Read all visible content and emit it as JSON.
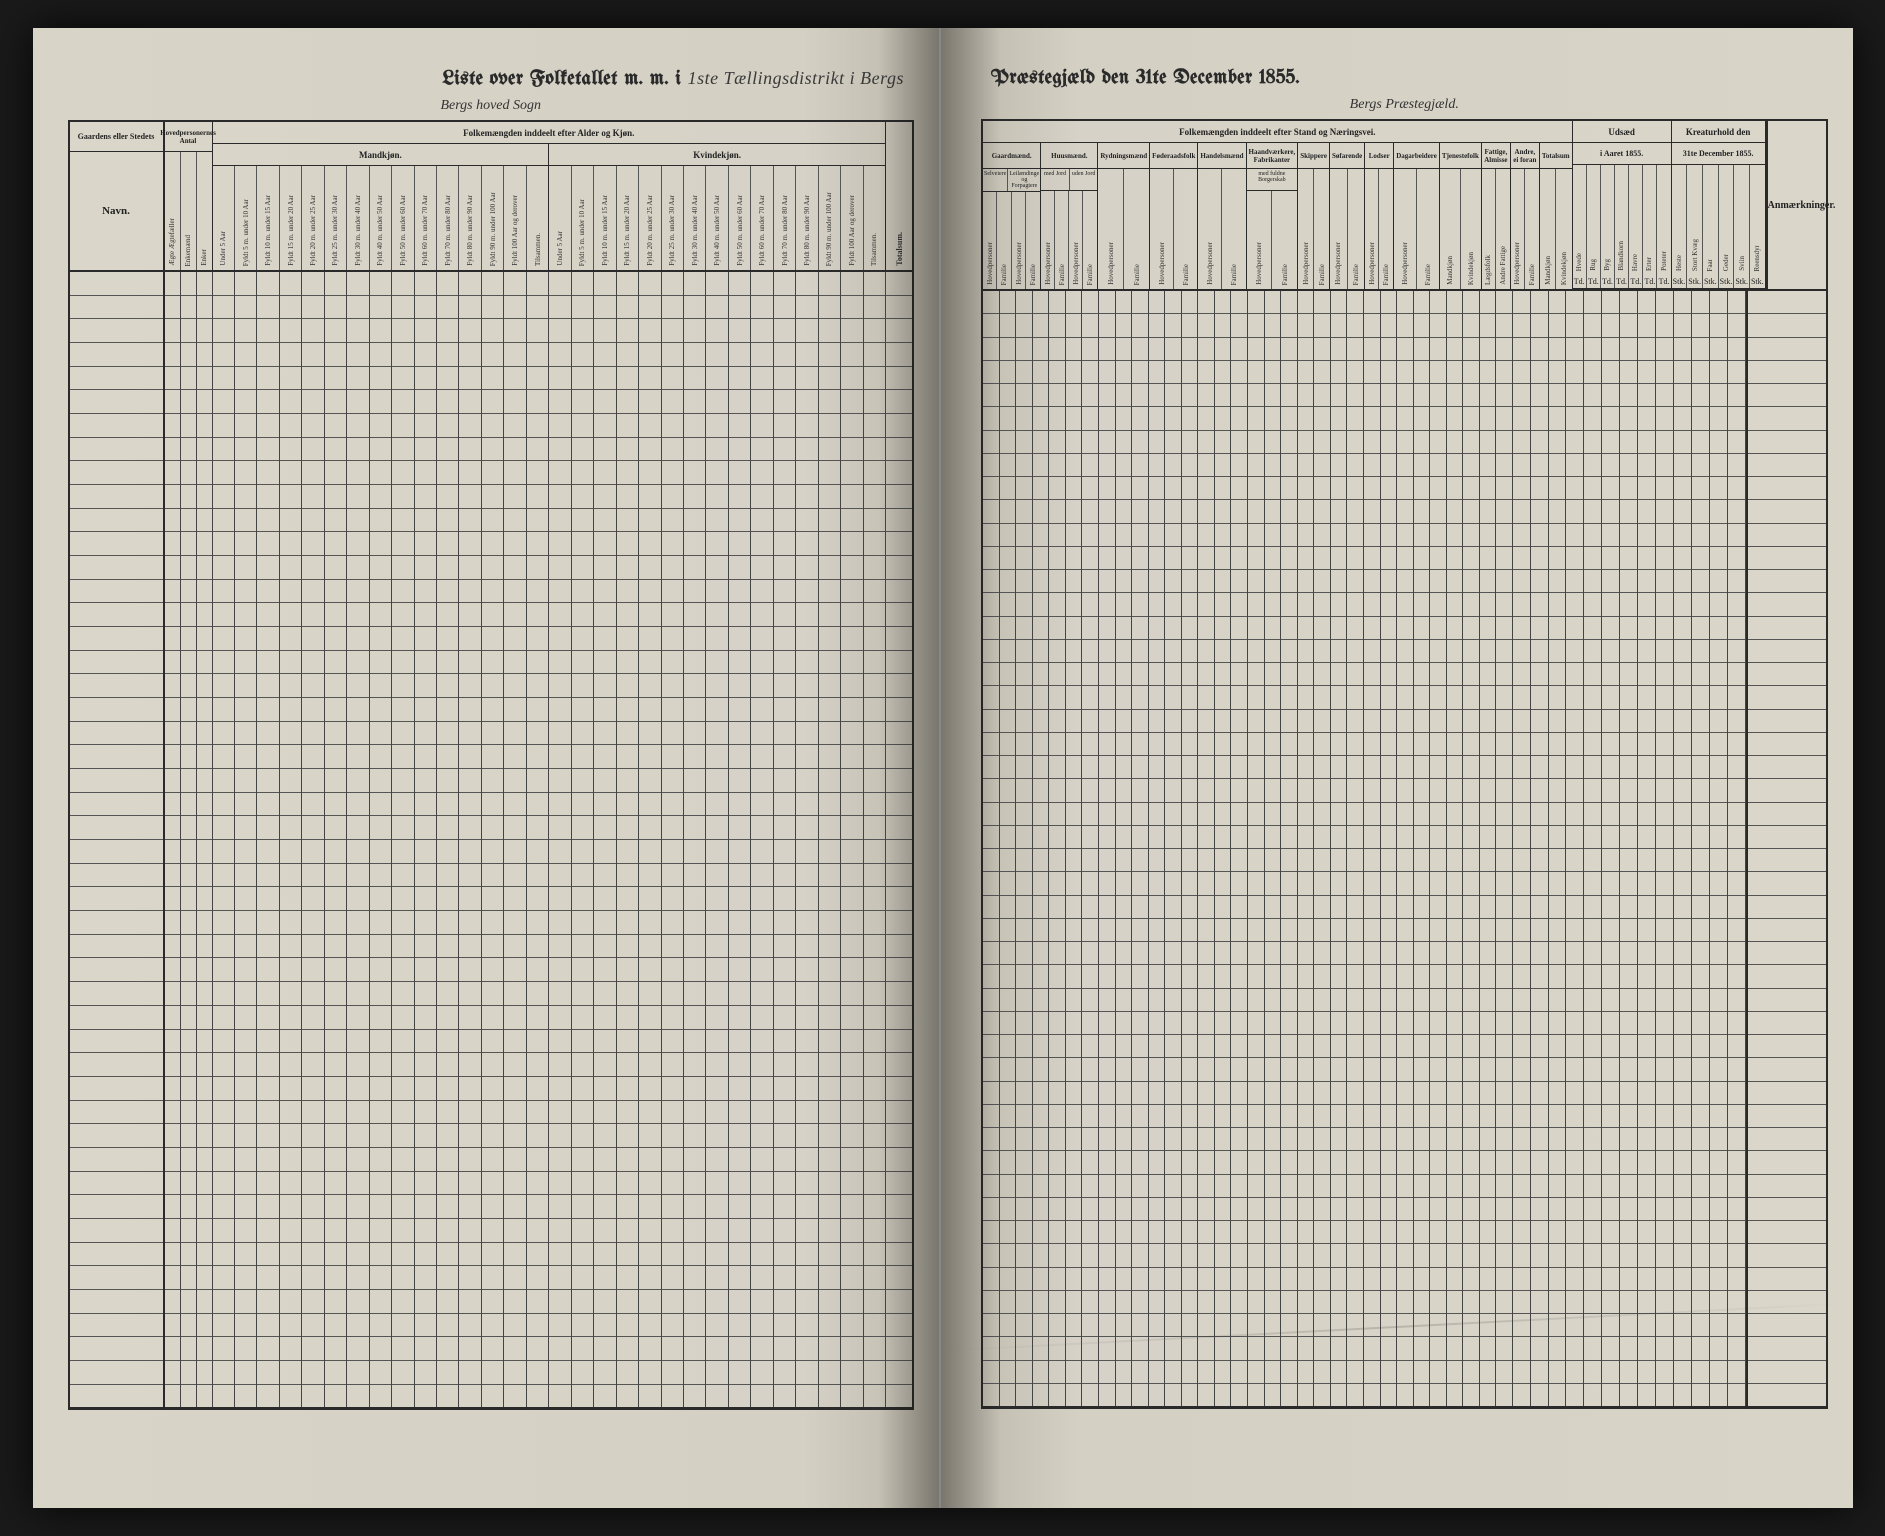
{
  "document": {
    "type": "census-ledger",
    "background_color": "#d4d0c4",
    "ink_color": "#2a2a2a",
    "grid_line_color": "#555555",
    "row_count": 48,
    "year": "1855"
  },
  "title": {
    "left_fragment": "Liste over Folketallet m. m. i",
    "handwritten_district": "1ste Tællingsdistrikt i Bergs",
    "right_fragment": "Præstegjæld den 31te December 1855."
  },
  "left_page": {
    "sogn_label": "Bergs hoved Sogn",
    "section_title": "Folkemængden inddeelt efter Alder og Kjøn.",
    "row_label": "Navn.",
    "gaard_header": "Gaardens eller Stedets",
    "groups": {
      "hovedpersoner": {
        "title": "Hovedpersonernes Antal",
        "cols": [
          "Ægte Ægtefæller",
          "Enkemænd",
          "Enker"
        ]
      },
      "mandkjon": {
        "title": "Mandkjøn.",
        "cols": [
          "Under 5 Aar",
          "Fyldt 5 m. under 10 Aar",
          "Fyldt 10 m. under 15 Aar",
          "Fyldt 15 m. under 20 Aar",
          "Fyldt 20 m. under 25 Aar",
          "Fyldt 25 m. under 30 Aar",
          "Fyldt 30 m. under 40 Aar",
          "Fyldt 40 m. under 50 Aar",
          "Fyldt 50 m. under 60 Aar",
          "Fyldt 60 m. under 70 Aar",
          "Fyldt 70 m. under 80 Aar",
          "Fyldt 80 m. under 90 Aar",
          "Fyldt 90 m. under 100 Aar",
          "Fyldt 100 Aar og derover",
          "Tilsammen."
        ]
      },
      "kvindekjon": {
        "title": "Kvindekjøn.",
        "cols": [
          "Under 5 Aar",
          "Fyldt 5 m. under 10 Aar",
          "Fyldt 10 m. under 15 Aar",
          "Fyldt 15 m. under 20 Aar",
          "Fyldt 20 m. under 25 Aar",
          "Fyldt 25 m. under 30 Aar",
          "Fyldt 30 m. under 40 Aar",
          "Fyldt 40 m. under 50 Aar",
          "Fyldt 50 m. under 60 Aar",
          "Fyldt 60 m. under 70 Aar",
          "Fyldt 70 m. under 80 Aar",
          "Fyldt 80 m. under 90 Aar",
          "Fyldt 90 m. under 100 Aar",
          "Fyldt 100 Aar og derover",
          "Tilsammen."
        ]
      },
      "totalsum": {
        "title": "Totalsum."
      }
    }
  },
  "right_page": {
    "praestegjeld_label": "Bergs Præstegjæld.",
    "section_title": "Folkemængden inddeelt efter Stand og Næringsvei.",
    "udfaed": {
      "title": "Udsæd",
      "sub": "i Aaret 1855.",
      "cols": [
        "Hvede",
        "Rug",
        "Byg",
        "Blandkorn",
        "Havre",
        "Erter",
        "Poteter"
      ]
    },
    "kreatur": {
      "title": "Kreaturhold den",
      "sub": "31te December 1855.",
      "cols": [
        "Heste",
        "Stort Kvæg",
        "Faar",
        "Geder",
        "Sviin",
        "Reensdyr"
      ]
    },
    "anm": "Anmærkninger.",
    "stand_groups": [
      {
        "title": "Gaardmænd.",
        "subs": [
          "Selveiere",
          "Leilændinge og Forpagtere"
        ],
        "leafcols": [
          "Hovedpersoner",
          "Familie",
          "Hovedpersoner",
          "Familie"
        ]
      },
      {
        "title": "Huusmænd.",
        "subs": [
          "med Jord",
          "uden Jord"
        ],
        "leafcols": [
          "Hovedpersoner",
          "Familie",
          "Hovedpersoner",
          "Familie"
        ]
      },
      {
        "title": "Rydningsmænd",
        "leafcols": [
          "Hovedpersoner",
          "Familie"
        ]
      },
      {
        "title": "Føderaadsfolk",
        "leafcols": [
          "Hovedpersoner",
          "Familie"
        ]
      },
      {
        "title": "Handelsmænd",
        "leafcols": [
          "Hovedpersoner",
          "Familie"
        ]
      },
      {
        "title": "Haandværkere, Fabrikanter",
        "subs": [
          "med fuldne Borgerskab"
        ],
        "leafcols": [
          "Hovedpersoner",
          "Familie"
        ]
      },
      {
        "title": "Skippere",
        "leafcols": [
          "Hovedpersoner",
          "Familie"
        ]
      },
      {
        "title": "Søfarende",
        "leafcols": [
          "Hovedpersoner",
          "Familie"
        ]
      },
      {
        "title": "Lodser",
        "leafcols": [
          "Hovedpersoner",
          "Familie"
        ]
      },
      {
        "title": "Dagarbeidere",
        "leafcols": [
          "Hovedpersoner",
          "Familie"
        ]
      },
      {
        "title": "Tjenestefolk",
        "leafcols": [
          "Mandkjøn",
          "Kvindekjøn"
        ]
      },
      {
        "title": "Fattige, Almisse",
        "leafcols": [
          "Lægdsfolk",
          "Andre Fattige"
        ]
      },
      {
        "title": "Andre, ei foran",
        "leafcols": [
          "Hovedpersoner",
          "Familie"
        ]
      },
      {
        "title": "Totalsum",
        "leafcols": [
          "Mandkjøn",
          "Kvindekjøn"
        ]
      }
    ],
    "unit_row": "Td."
  }
}
